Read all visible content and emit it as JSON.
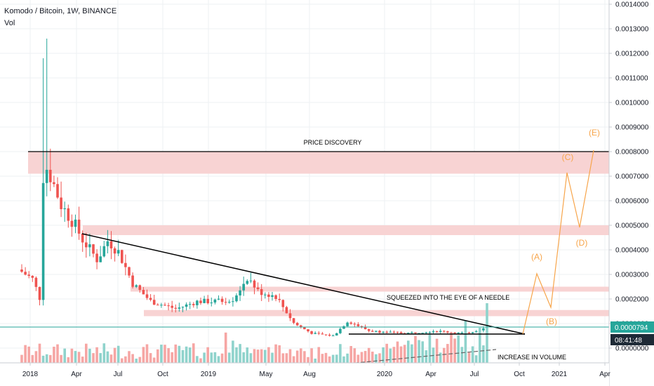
{
  "header": {
    "title": "Komodo / Bitcoin, 1W, BINANCE",
    "indicator": "Vol"
  },
  "chart_data": {
    "type": "candlestick",
    "symbol": "Komodo / Bitcoin",
    "interval": "1W",
    "exchange": "BINANCE",
    "y_axis": {
      "ticks": [
        "0.0014000",
        "0.0013000",
        "0.0012000",
        "0.0011000",
        "0.0010000",
        "0.0009000",
        "0.0008000",
        "0.0007000",
        "0.0006000",
        "0.0005000",
        "0.0004000",
        "0.0003000",
        "0.0002000",
        "0.0001000",
        "0.0000000"
      ],
      "ylim": [
        0,
        0.0014
      ]
    },
    "x_axis": {
      "ticks": [
        "2018",
        "Apr",
        "Jul",
        "Oct",
        "2019",
        "May",
        "Aug",
        "2020",
        "Apr",
        "Jul",
        "Oct",
        "2021",
        "Apr"
      ]
    },
    "last_price": "0.0000794",
    "countdown": "08:41:48",
    "anchors": [
      {
        "x": 0,
        "v": 0.00032
      },
      {
        "x": 4,
        "v": 0.00028
      },
      {
        "x": 6,
        "v": 0.0002
      },
      {
        "x": 7,
        "v": 0.00076
      },
      {
        "x": 9,
        "v": 0.0007
      },
      {
        "x": 12,
        "v": 0.00058
      },
      {
        "x": 15,
        "v": 0.00052
      },
      {
        "x": 18,
        "v": 0.00044
      },
      {
        "x": 22,
        "v": 0.00036
      },
      {
        "x": 25,
        "v": 0.00044
      },
      {
        "x": 28,
        "v": 0.00039
      },
      {
        "x": 32,
        "v": 0.00026
      },
      {
        "x": 37,
        "v": 0.00019
      },
      {
        "x": 44,
        "v": 0.00016
      },
      {
        "x": 50,
        "v": 0.00019
      },
      {
        "x": 55,
        "v": 0.00019
      },
      {
        "x": 60,
        "v": 0.0002
      },
      {
        "x": 64,
        "v": 0.00029
      },
      {
        "x": 67,
        "v": 0.00023
      },
      {
        "x": 72,
        "v": 0.00021
      },
      {
        "x": 77,
        "v": 0.0001
      },
      {
        "x": 82,
        "v": 6e-05
      },
      {
        "x": 88,
        "v": 5e-05
      },
      {
        "x": 92,
        "v": 0.00011
      },
      {
        "x": 98,
        "v": 7e-05
      },
      {
        "x": 108,
        "v": 6e-05
      },
      {
        "x": 116,
        "v": 7e-05
      },
      {
        "x": 125,
        "v": 6e-05
      },
      {
        "x": 130,
        "v": 8e-05
      }
    ],
    "spikes": [
      {
        "x": 6,
        "v": 0.00118
      },
      {
        "x": 7,
        "v": 0.00126
      }
    ],
    "annotations": {
      "price_discovery": "PRICE DISCOVERY",
      "needle": "SQUEEZED INTO THE EYE OF A NEEDLE",
      "volume": "INCREASE IN VOLUME"
    },
    "waves": [
      "(A)",
      "(B)",
      "(C)",
      "(D)",
      "(E)"
    ],
    "zones": [
      [
        0.00071,
        0.0008
      ],
      [
        0.00046,
        0.0005
      ],
      [
        0.00023,
        0.00025
      ],
      [
        0.00013,
        0.000155
      ]
    ],
    "colors": {
      "up": "#26a69a",
      "down": "#ef5350",
      "vol_up": "#8fd3cc",
      "vol_down": "#f6a6a4",
      "zone": "#f8d3d3",
      "wave": "#f7a54b",
      "last": "#26a69a"
    }
  }
}
